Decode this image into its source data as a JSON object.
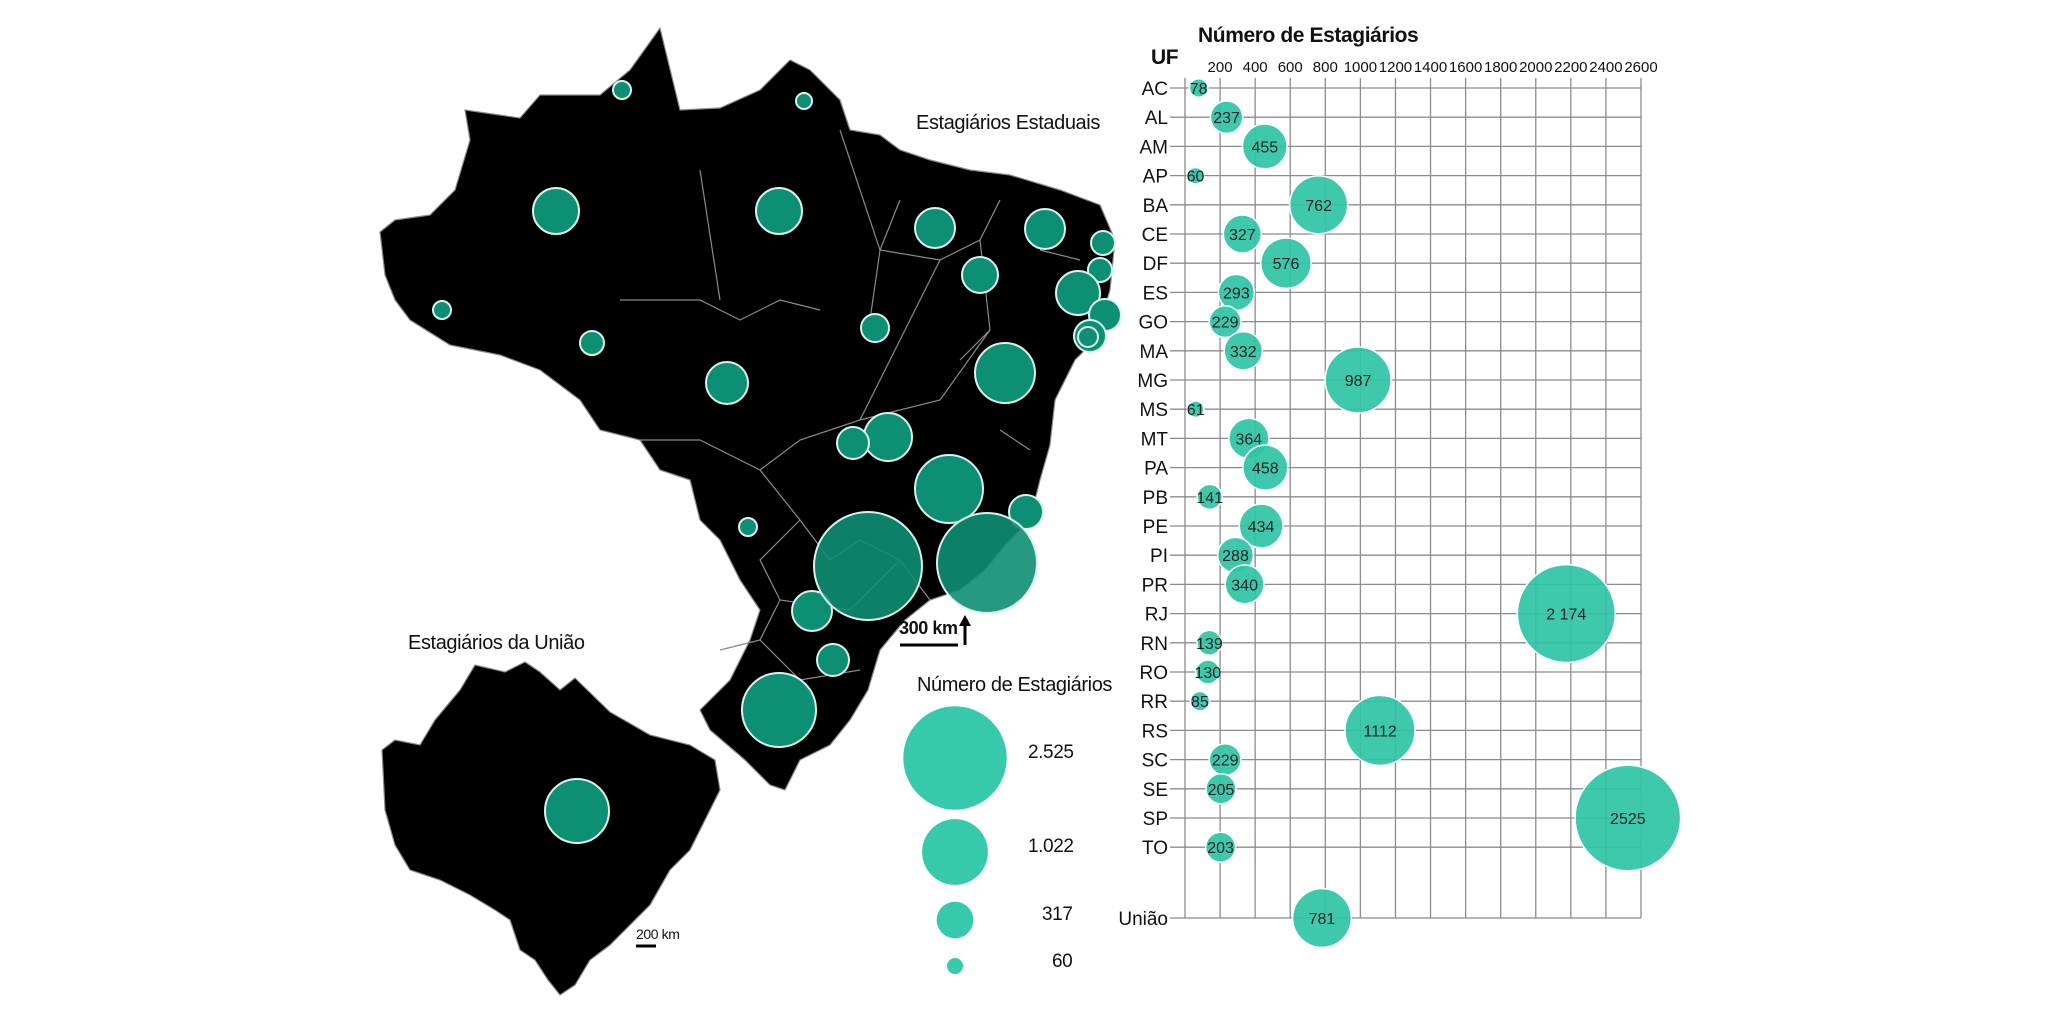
{
  "map": {
    "state_title": "Estagiários Estaduais",
    "union_title": "Estagiários da União",
    "scale_main": "300 km",
    "scale_union": "200 km",
    "legend": {
      "title": "Número de Estagiários",
      "items": [
        {
          "label": "2.525",
          "value": 2525
        },
        {
          "label": "1.022",
          "value": 1022
        },
        {
          "label": "317",
          "value": 317
        },
        {
          "label": "60",
          "value": 60
        }
      ]
    }
  },
  "chart_data": {
    "type": "scatter",
    "title": "Número de Estagiários",
    "ylabel": "UF",
    "xlim": [
      0,
      2600
    ],
    "xticks": [
      200,
      400,
      600,
      800,
      1000,
      1200,
      1400,
      1600,
      1800,
      2000,
      2200,
      2400,
      2600
    ],
    "categories": [
      "AC",
      "AL",
      "AM",
      "AP",
      "BA",
      "CE",
      "DF",
      "ES",
      "GO",
      "MA",
      "MG",
      "MS",
      "MT",
      "PA",
      "PB",
      "PE",
      "PI",
      "PR",
      "RJ",
      "RN",
      "RO",
      "RR",
      "RS",
      "SC",
      "SE",
      "SP",
      "TO",
      "União"
    ],
    "values": [
      78,
      237,
      455,
      60,
      762,
      327,
      576,
      293,
      229,
      332,
      987,
      61,
      364,
      458,
      141,
      434,
      288,
      340,
      2174,
      139,
      130,
      85,
      1112,
      229,
      205,
      2525,
      203,
      781
    ],
    "value_labels": [
      "78",
      "237",
      "455",
      "60",
      "762",
      "327",
      "576",
      "293",
      "229",
      "332",
      "987",
      "61",
      "364",
      "458",
      "141",
      "434",
      "288",
      "340",
      "2 174",
      "139",
      "130",
      "85",
      "1112",
      "229",
      "205",
      "2525",
      "203",
      "781"
    ],
    "colors": {
      "bubble": "#2ec4a5",
      "map": "#000000"
    }
  }
}
